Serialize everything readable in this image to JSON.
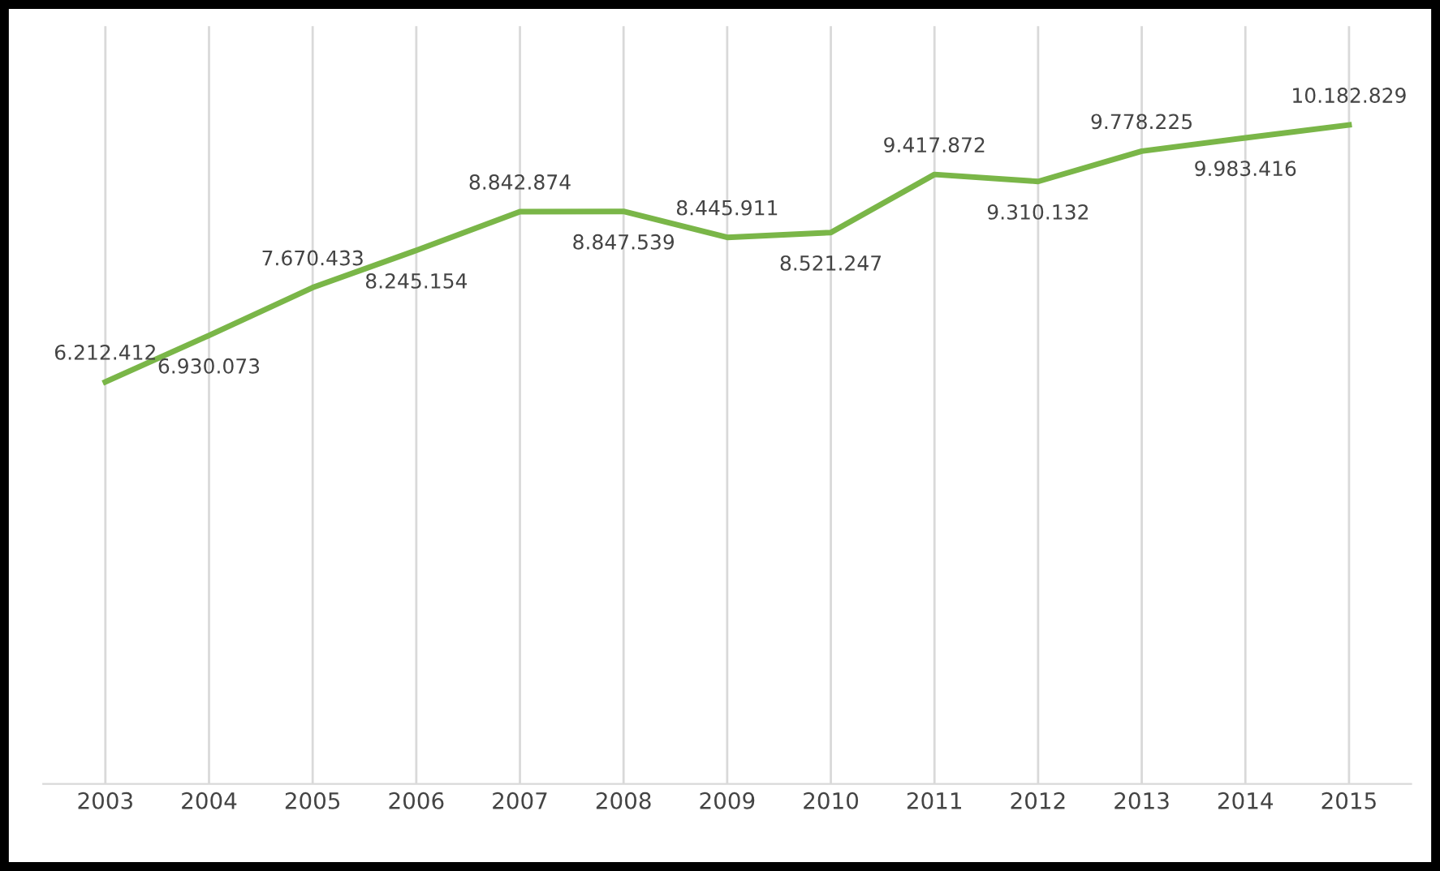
{
  "chart_data": {
    "type": "line",
    "categories": [
      "2003",
      "2004",
      "2005",
      "2006",
      "2007",
      "2008",
      "2009",
      "2010",
      "2011",
      "2012",
      "2013",
      "2014",
      "2015"
    ],
    "series": [
      {
        "color": "#7ab648",
        "values": [
          6212412,
          6930073,
          7670433,
          8245154,
          8842874,
          8847539,
          8445911,
          8521247,
          9417872,
          9310132,
          9778225,
          9983416,
          10182829
        ],
        "value_labels": [
          "6.212.412",
          "6.930.073",
          "7.670.433",
          "8.245.154",
          "8.842.874",
          "8.847.539",
          "8.445.911",
          "8.521.247",
          "9.417.872",
          "9.310.132",
          "9.778.225",
          "9.983.416",
          "10.182.829"
        ]
      }
    ],
    "grid": "x",
    "tick_labels": "x",
    "marker": "none",
    "line_style": "solid",
    "legend": false
  }
}
